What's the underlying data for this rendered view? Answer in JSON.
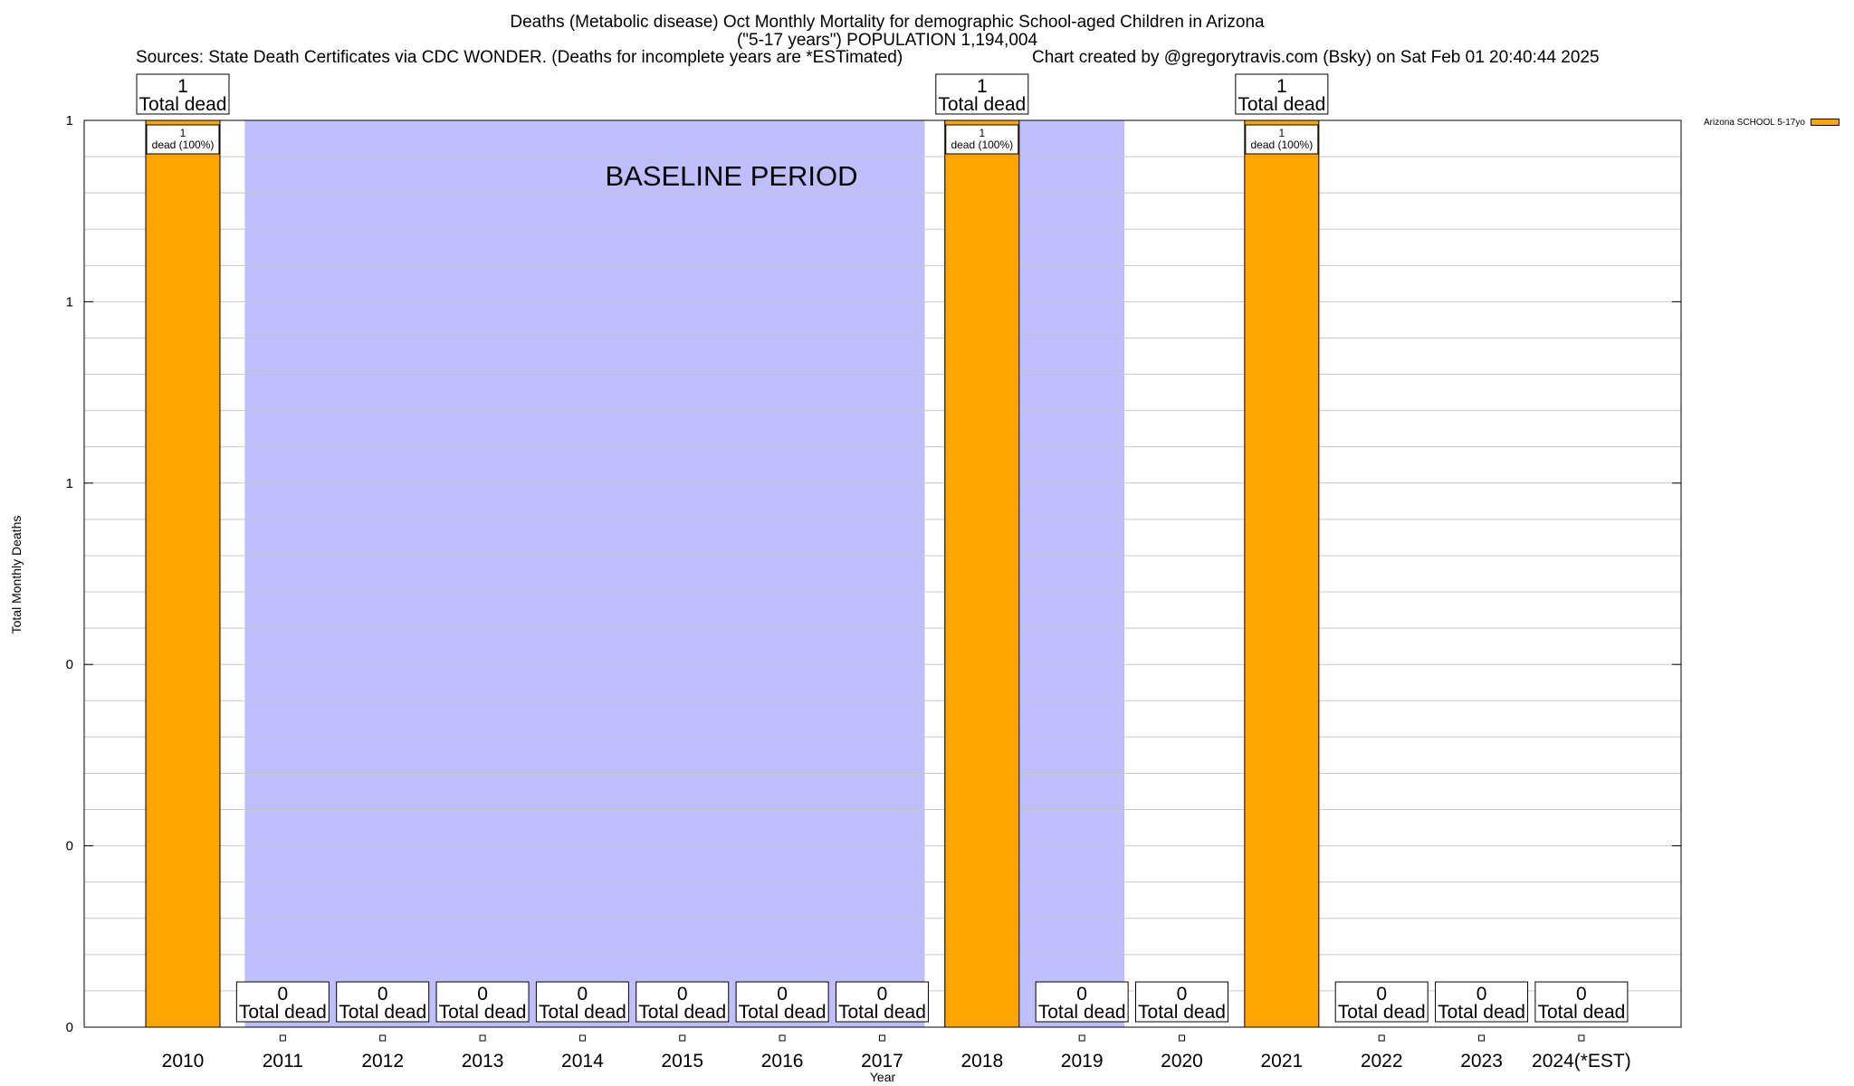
{
  "chart_data": {
    "type": "bar",
    "title": "Deaths (Metabolic disease) Oct Monthly Mortality for demographic School-aged Children in Arizona",
    "subtitle": "(\"5-17 years\") POPULATION 1,194,004",
    "source_left": "Sources: State Death Certificates via CDC WONDER. (Deaths for incomplete years are *ESTimated)",
    "source_right": "Chart created by @gregorytravis.com (Bsky) on Sat Feb 01 20:40:44 2025",
    "xlabel": "Year",
    "ylabel": "Total Monthly Deaths",
    "categories": [
      "2010",
      "2011",
      "2012",
      "2013",
      "2014",
      "2015",
      "2016",
      "2017",
      "2018",
      "2019",
      "2020",
      "2021",
      "2022",
      "2023",
      "2024(*EST)"
    ],
    "series": [
      {
        "name": "Arizona SCHOOL 5-17yo",
        "color": "#FFA500",
        "values": [
          1,
          0,
          0,
          0,
          0,
          0,
          0,
          0,
          1,
          0,
          0,
          1,
          0,
          0,
          0
        ]
      }
    ],
    "total_labels": [
      "1",
      "0",
      "0",
      "0",
      "0",
      "0",
      "0",
      "0",
      "1",
      "0",
      "0",
      "1",
      "0",
      "0",
      "0"
    ],
    "total_suffix": "Total dead",
    "segment_labels": [
      {
        "category": "2010",
        "count": "1",
        "text": "dead (100%)"
      },
      {
        "category": "2018",
        "count": "1",
        "text": "dead (100%)"
      },
      {
        "category": "2021",
        "count": "1",
        "text": "dead (100%)"
      }
    ],
    "ylim": [
      0,
      1
    ],
    "ytick_labels": [
      "0",
      "0",
      "0",
      "1",
      "1",
      "1"
    ],
    "grid": true,
    "legend_position": "top-right, outside plot",
    "baseline": {
      "label": "BASELINE PERIOD",
      "color": "#BFBFFF",
      "ranges": [
        [
          "2011",
          "2017"
        ],
        [
          "2018",
          "2019"
        ]
      ]
    }
  }
}
